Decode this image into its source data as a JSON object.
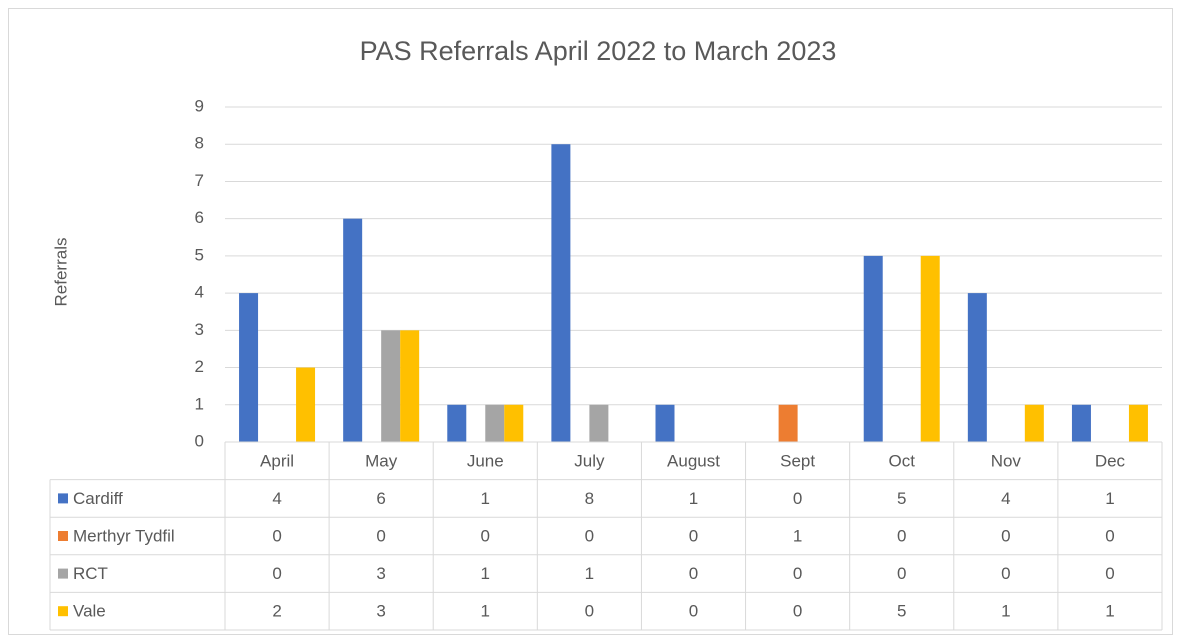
{
  "chart_data": {
    "type": "bar",
    "title": "PAS Referrals April 2022 to March 2023",
    "y_label": "Referrals",
    "categories": [
      "April",
      "May",
      "June",
      "July",
      "August",
      "Sept",
      "Oct",
      "Nov",
      "Dec"
    ],
    "series": [
      {
        "name": "Cardiff",
        "color": "#4472c4",
        "values": [
          4,
          6,
          1,
          8,
          1,
          0,
          5,
          4,
          1
        ]
      },
      {
        "name": "Merthyr Tydfil",
        "color": "#ed7d31",
        "values": [
          0,
          0,
          0,
          0,
          0,
          1,
          0,
          0,
          0
        ]
      },
      {
        "name": "RCT",
        "color": "#a5a5a5",
        "values": [
          0,
          3,
          1,
          1,
          0,
          0,
          0,
          0,
          0
        ]
      },
      {
        "name": "Vale",
        "color": "#ffc000",
        "values": [
          2,
          3,
          1,
          0,
          0,
          0,
          5,
          1,
          1
        ]
      }
    ],
    "ylim": [
      0,
      9
    ],
    "yticks": [
      0,
      1,
      2,
      3,
      4,
      5,
      6,
      7,
      8,
      9
    ],
    "grid": true,
    "data_table": true
  }
}
